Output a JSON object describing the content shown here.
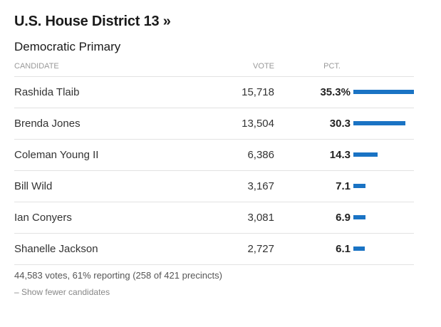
{
  "race": {
    "title": "U.S. House District 13 »",
    "subtitle": "Democratic Primary"
  },
  "table": {
    "headers": {
      "candidate": "CANDIDATE",
      "vote": "VOTE",
      "pct": "PCT."
    },
    "rows": [
      {
        "name": "Rashida Tlaib",
        "votes": "15,718",
        "pct_label": "35.3%",
        "pct": 35.3
      },
      {
        "name": "Brenda Jones",
        "votes": "13,504",
        "pct_label": "30.3",
        "pct": 30.3
      },
      {
        "name": "Coleman Young II",
        "votes": "6,386",
        "pct_label": "14.3",
        "pct": 14.3
      },
      {
        "name": "Bill Wild",
        "votes": "3,167",
        "pct_label": "7.1",
        "pct": 7.1
      },
      {
        "name": "Ian Conyers",
        "votes": "3,081",
        "pct_label": "6.9",
        "pct": 6.9
      },
      {
        "name": "Shanelle Jackson",
        "votes": "2,727",
        "pct_label": "6.1",
        "pct": 6.1
      }
    ]
  },
  "footer": {
    "summary": "44,583 votes, 61% reporting (258 of 421 precincts)",
    "toggle_label": "– Show fewer candidates"
  },
  "colors": {
    "bar": "#1a73c4"
  }
}
